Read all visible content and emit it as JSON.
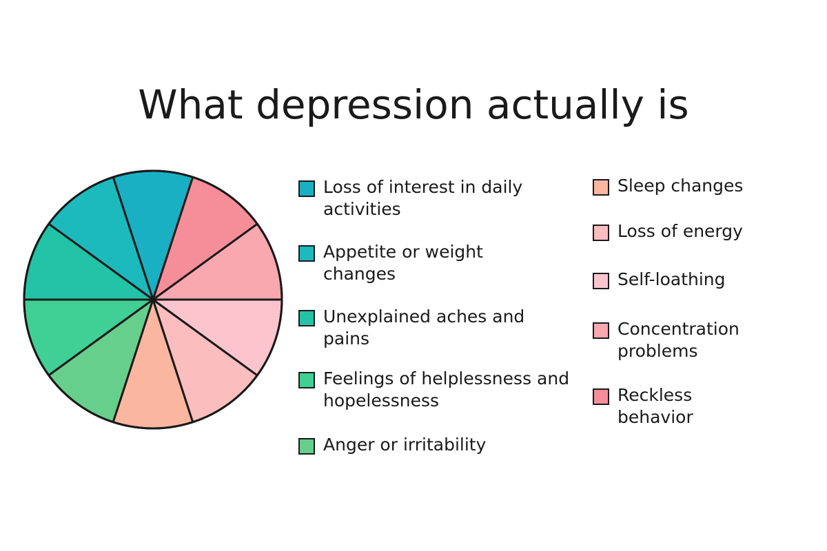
{
  "chart_data": {
    "type": "pie",
    "title": "What depression actually is",
    "categories": [
      "Loss of interest in daily activities",
      "Appetite or weight changes",
      "Unexplained aches and pains",
      "Feelings of helplessness and hopelessness",
      "Anger or irritability",
      "Sleep changes",
      "Loss of energy",
      "Self-loathing",
      "Concentration problems",
      "Reckless behavior"
    ],
    "values": [
      10,
      10,
      10,
      10,
      10,
      10,
      10,
      10,
      10,
      10
    ],
    "colors": [
      "#19b0c4",
      "#1dbabd",
      "#22c3a6",
      "#40d095",
      "#66cf8c",
      "#fbb6a0",
      "#fbbdbd",
      "#fcc5cd",
      "#f9a8b0",
      "#f68e99"
    ]
  }
}
